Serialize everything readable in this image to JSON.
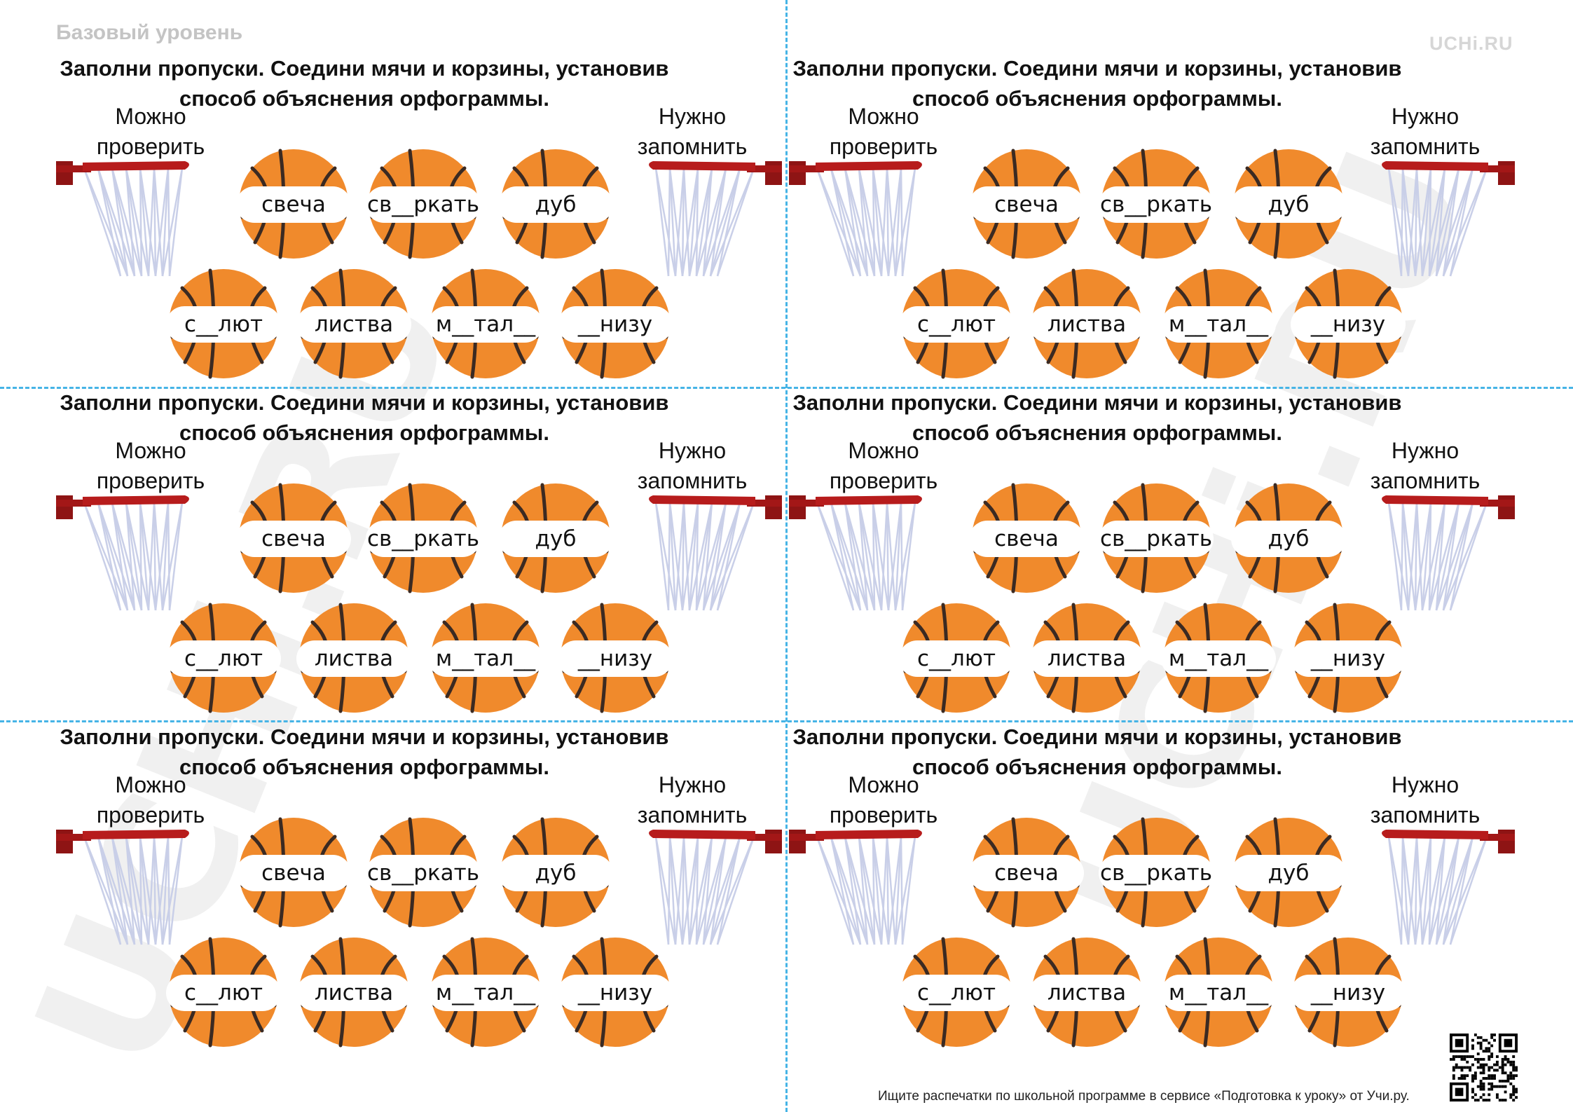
{
  "header": {
    "level_label": "Базовый уровень",
    "brand": "UCHi.RU"
  },
  "watermark_text": "UCHi.RU",
  "card": {
    "title_line1": "Заполни пропуски. Соедини мячи и корзины, установив",
    "title_line2": "способ объяснения орфограммы.",
    "left_basket_line1": "Можно",
    "left_basket_line2": "проверить",
    "right_basket_line1": "Нужно",
    "right_basket_line2": "запомнить",
    "words": [
      "свеча",
      "св__ркать",
      "дуб",
      "с__лют",
      "листва",
      "м__тал__",
      "__низу"
    ]
  },
  "cards_count": 6,
  "footer": {
    "note": "Ищите распечатки по школьной программе в сервисе «Подготовка к уроку» от Учи.ру."
  },
  "colors": {
    "cut_line": "#46b4e6",
    "ball": "#f08a2c",
    "ball_seams": "#3b2a22",
    "rim": "#b71c1c",
    "net": "#c9cfe8"
  },
  "icons": {
    "ball": "basketball-icon",
    "basket": "basketball-hoop-icon",
    "qr": "qr-code-icon"
  }
}
